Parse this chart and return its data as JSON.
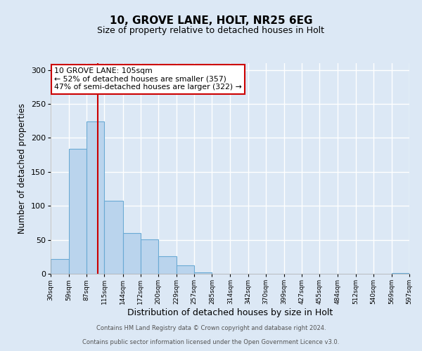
{
  "title": "10, GROVE LANE, HOLT, NR25 6EG",
  "subtitle": "Size of property relative to detached houses in Holt",
  "xlabel": "Distribution of detached houses by size in Holt",
  "ylabel": "Number of detached properties",
  "bin_edges": [
    30,
    59,
    87,
    115,
    144,
    172,
    200,
    229,
    257,
    285,
    314,
    342,
    370,
    399,
    427,
    455,
    484,
    512,
    540,
    569,
    597
  ],
  "bar_heights": [
    22,
    184,
    224,
    107,
    60,
    51,
    26,
    12,
    2,
    0,
    0,
    0,
    0,
    0,
    0,
    0,
    0,
    0,
    0,
    1
  ],
  "bar_color": "#bad4ed",
  "bar_edge_color": "#6aaad4",
  "property_line_x": 105,
  "property_line_color": "#cc0000",
  "annotation_text": "10 GROVE LANE: 105sqm\n← 52% of detached houses are smaller (357)\n47% of semi-detached houses are larger (322) →",
  "annotation_box_color": "white",
  "annotation_box_edge_color": "#cc0000",
  "ylim": [
    0,
    310
  ],
  "xlim": [
    30,
    597
  ],
  "plot_bg_color": "#dce8f5",
  "fig_bg_color": "#dce8f5",
  "footer_bg_color": "#ffffff",
  "grid_color": "#ffffff",
  "footer_line1": "Contains HM Land Registry data © Crown copyright and database right 2024.",
  "footer_line2": "Contains public sector information licensed under the Open Government Licence v3.0.",
  "tick_labels": [
    "30sqm",
    "59sqm",
    "87sqm",
    "115sqm",
    "144sqm",
    "172sqm",
    "200sqm",
    "229sqm",
    "257sqm",
    "285sqm",
    "314sqm",
    "342sqm",
    "370sqm",
    "399sqm",
    "427sqm",
    "455sqm",
    "484sqm",
    "512sqm",
    "540sqm",
    "569sqm",
    "597sqm"
  ],
  "yticks": [
    0,
    50,
    100,
    150,
    200,
    250,
    300
  ]
}
